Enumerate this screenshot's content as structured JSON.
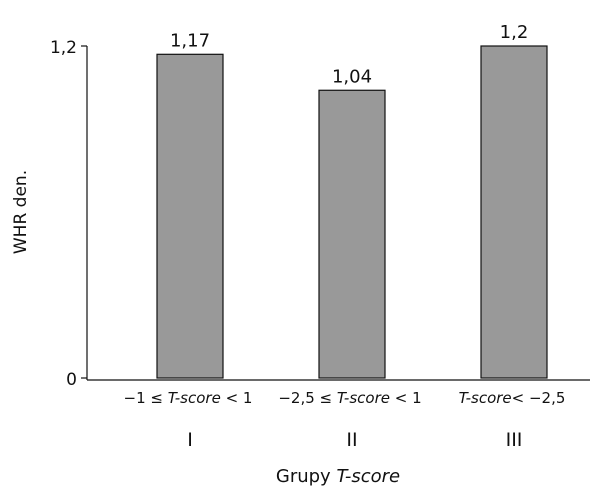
{
  "chart_data": {
    "type": "bar",
    "categories": [
      {
        "pre": "−1 ≤ ",
        "ital": "T-score",
        "post": " < 1"
      },
      {
        "pre": "−2,5 ≤ ",
        "ital": "T-score",
        "post": " < 1"
      },
      {
        "pre": "",
        "ital": "T-score",
        "post": "< −2,5"
      }
    ],
    "groups": [
      "I",
      "II",
      "III"
    ],
    "values": [
      1.17,
      1.04,
      1.2
    ],
    "value_labels": [
      "1,17",
      "1,04",
      "1,2"
    ],
    "ylim": [
      0,
      1.2
    ],
    "yticks": [
      0,
      1.2
    ],
    "ytick_labels": [
      "0",
      "1,2"
    ],
    "ylabel": "WHR den.",
    "xlabel": {
      "pre": "Grupy ",
      "ital": "T-score"
    },
    "bar_color": "#999999",
    "grid": false
  }
}
